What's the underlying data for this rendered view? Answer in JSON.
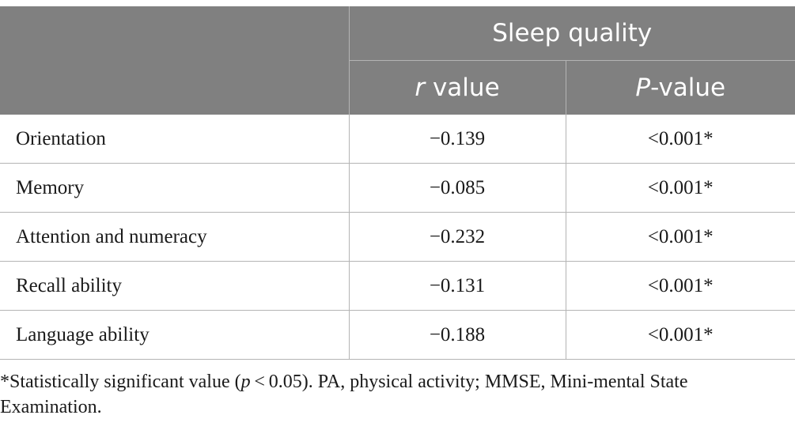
{
  "table": {
    "group_header": "Sleep quality",
    "columns": [
      {
        "italic_part": "r",
        "rest": " value"
      },
      {
        "italic_part": "P",
        "rest": "-value"
      }
    ],
    "rows": [
      {
        "label": "Orientation",
        "r": "−0.139",
        "p": "<0.001*"
      },
      {
        "label": "Memory",
        "r": "−0.085",
        "p": "<0.001*"
      },
      {
        "label": "Attention and numeracy",
        "r": "−0.232",
        "p": "<0.001*"
      },
      {
        "label": "Recall ability",
        "r": "−0.131",
        "p": "<0.001*"
      },
      {
        "label": "Language ability",
        "r": "−0.188",
        "p": "<0.001*"
      }
    ]
  },
  "footnote": {
    "before": "*Statistically significant value (",
    "italic": "p",
    "after": " < 0.05). PA, physical activity; MMSE, Mini-mental State Examination."
  }
}
